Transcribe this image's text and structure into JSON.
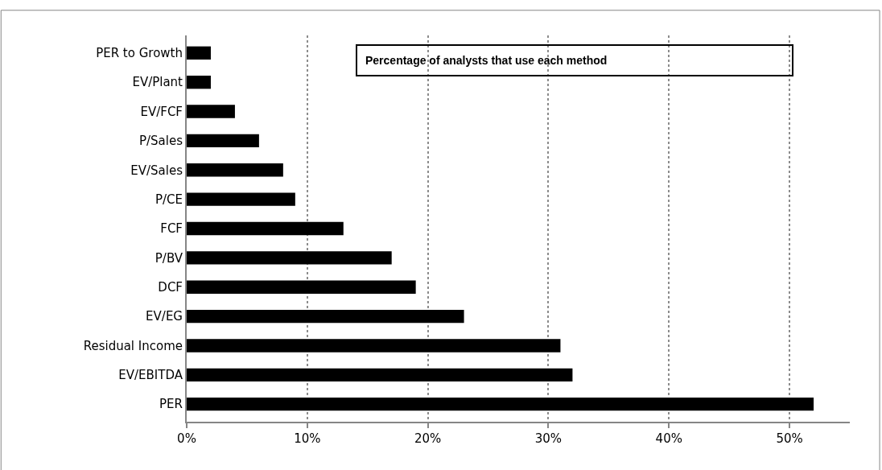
{
  "chart_data": {
    "type": "bar",
    "orientation": "horizontal",
    "title": "Percentage of analysts that use each method",
    "categories": [
      "PER to Growth",
      "EV/Plant",
      "EV/FCF",
      "P/Sales",
      "EV/Sales",
      "P/CE",
      "FCF",
      "P/BV",
      "DCF",
      "EV/EG",
      "Residual Income",
      "EV/EBITDA",
      "PER"
    ],
    "values": [
      2,
      2,
      4,
      6,
      8,
      9,
      13,
      17,
      19,
      23,
      31,
      32,
      52
    ],
    "color": "#000000",
    "xlim": [
      0,
      55
    ],
    "xticks": [
      {
        "value": 0,
        "label": "0%"
      },
      {
        "value": 10,
        "label": "10%"
      },
      {
        "value": 20,
        "label": "20%"
      },
      {
        "value": 30,
        "label": "30%"
      },
      {
        "value": 40,
        "label": "40%"
      },
      {
        "value": 50,
        "label": "50%"
      }
    ],
    "grid": "x",
    "legend": false
  }
}
